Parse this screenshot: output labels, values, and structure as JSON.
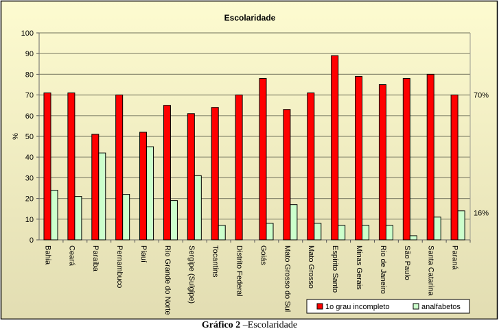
{
  "chart_data": {
    "type": "bar",
    "title": "Escolaridade",
    "xlabel": "",
    "ylabel": "%",
    "ylim": [
      0,
      100
    ],
    "yticks": [
      0,
      10,
      20,
      30,
      40,
      50,
      60,
      70,
      80,
      90,
      100
    ],
    "grid": true,
    "legend_position": "bottom-right",
    "categories": [
      "Bahia",
      "Ceará",
      "Paraiba",
      "Pernambuco",
      "Piauí",
      "Rio Grande do Norte",
      "Sergipe (Sulgipe)",
      "Tocantins",
      "Distrito Federal",
      "Goiás",
      "Mato Grosso do Sul",
      "Mato Grosso",
      "Espírito Santo",
      "Minas Gerais",
      "Rio de Janeiro",
      "São Paulo",
      "Santa Catarina",
      "Paraná"
    ],
    "series": [
      {
        "name": "1o grau incompleto",
        "color": "#ff0000",
        "values": [
          71,
          71,
          51,
          70,
          52,
          65,
          61,
          64,
          70,
          78,
          63,
          71,
          89,
          79,
          75,
          78,
          80,
          70
        ]
      },
      {
        "name": "analfabetos",
        "color": "#ccffcc",
        "values": [
          24,
          21,
          42,
          22,
          45,
          19,
          31,
          7,
          0,
          8,
          17,
          8,
          7,
          7,
          7,
          2,
          11,
          14
        ]
      }
    ],
    "annotations": [
      {
        "text": "70%",
        "y": 70
      },
      {
        "text": "16%",
        "y": 13
      }
    ]
  },
  "caption": {
    "bold": "Gráfico 2",
    "rest": " –Escolaridade"
  }
}
